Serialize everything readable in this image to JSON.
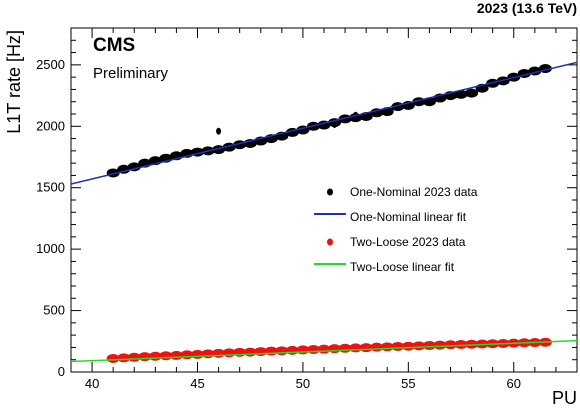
{
  "header": {
    "experiment": "CMS",
    "status": "Preliminary",
    "energy_label": "2023 (13.6 TeV)"
  },
  "chart_data": {
    "type": "scatter",
    "xlabel": "PU",
    "ylabel": "L1T rate [Hz]",
    "xlim": [
      39,
      63
    ],
    "ylim": [
      0,
      2800
    ],
    "x_ticks": [
      40,
      45,
      50,
      55,
      60
    ],
    "y_ticks": [
      0,
      500,
      1000,
      1500,
      2000,
      2500
    ],
    "grid": false,
    "legend_position": "right",
    "series": [
      {
        "name": "One-Nominal 2023 data",
        "kind": "points",
        "color": "#000000",
        "x": [
          41.0,
          41.5,
          42.0,
          42.5,
          43.0,
          43.5,
          44.0,
          44.5,
          45.0,
          45.5,
          46.0,
          46.5,
          47.0,
          47.5,
          48.0,
          48.5,
          49.0,
          49.5,
          50.0,
          50.5,
          51.0,
          51.5,
          52.0,
          52.5,
          53.0,
          53.5,
          54.0,
          54.5,
          55.0,
          55.5,
          56.0,
          56.5,
          57.0,
          57.5,
          58.0,
          58.5,
          59.0,
          59.5,
          60.0,
          60.5,
          61.0,
          61.5
        ],
        "y": [
          1620,
          1650,
          1670,
          1700,
          1720,
          1740,
          1760,
          1780,
          1790,
          1800,
          1810,
          1830,
          1850,
          1860,
          1880,
          1900,
          1920,
          1950,
          1970,
          2000,
          2010,
          2030,
          2060,
          2070,
          2080,
          2110,
          2120,
          2160,
          2170,
          2200,
          2200,
          2230,
          2250,
          2260,
          2270,
          2310,
          2350,
          2370,
          2400,
          2430,
          2450,
          2470
        ]
      },
      {
        "name": "One-Nominal linear fit",
        "kind": "line",
        "color": "#1f2fb8",
        "x": [
          39,
          63
        ],
        "y": [
          1530,
          2520
        ]
      },
      {
        "name": "Two-Loose 2023 data",
        "kind": "points",
        "color": "#ee1111",
        "x": [
          41.0,
          41.5,
          42.0,
          42.5,
          43.0,
          43.5,
          44.0,
          44.5,
          45.0,
          45.5,
          46.0,
          46.5,
          47.0,
          47.5,
          48.0,
          48.5,
          49.0,
          49.5,
          50.0,
          50.5,
          51.0,
          51.5,
          52.0,
          52.5,
          53.0,
          53.5,
          54.0,
          54.5,
          55.0,
          55.5,
          56.0,
          56.5,
          57.0,
          57.5,
          58.0,
          58.5,
          59.0,
          59.5,
          60.0,
          60.5,
          61.0,
          61.5
        ],
        "y": [
          110,
          115,
          120,
          125,
          128,
          132,
          135,
          140,
          143,
          148,
          152,
          156,
          160,
          162,
          166,
          170,
          172,
          176,
          180,
          183,
          186,
          190,
          193,
          196,
          198,
          202,
          205,
          208,
          210,
          213,
          216,
          219,
          222,
          224,
          226,
          228,
          230,
          232,
          235,
          238,
          240,
          242
        ]
      },
      {
        "name": "Two-Loose linear fit",
        "kind": "line",
        "color": "#22dd22",
        "x": [
          39,
          63
        ],
        "y": [
          85,
          255
        ]
      }
    ],
    "outliers": {
      "x": [
        46.0,
        51.5,
        52.5,
        57.3
      ],
      "y": [
        1960,
        2015,
        2090,
        2260
      ]
    }
  }
}
